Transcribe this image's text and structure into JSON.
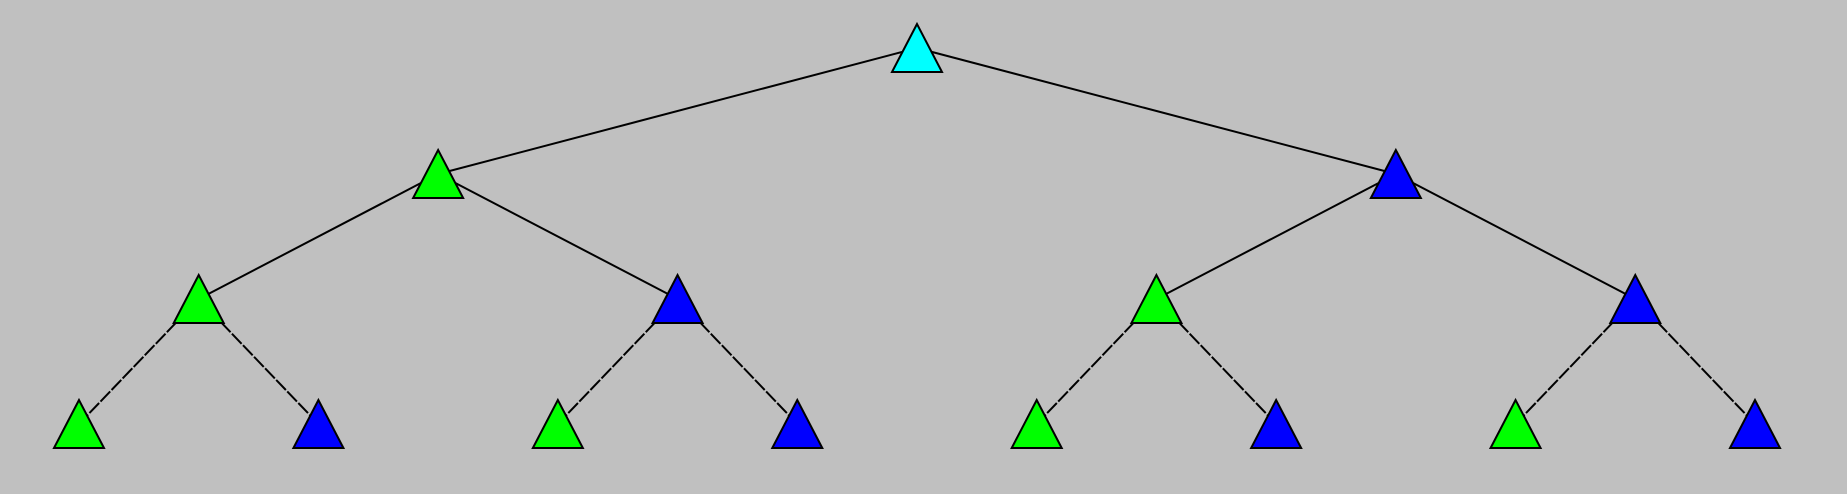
{
  "diagram": {
    "background": "#c0c0c0",
    "colors": {
      "root": "#00ffff",
      "green": "#00ff00",
      "blue": "#0000ff",
      "outline": "#000000",
      "edge": "#000000"
    },
    "nodes": [
      {
        "id": "n1",
        "color": "root"
      },
      {
        "id": "n2",
        "color": "green",
        "parent": "n1"
      },
      {
        "id": "n3",
        "color": "blue",
        "parent": "n1"
      },
      {
        "id": "n4",
        "color": "green",
        "parent": "n2"
      },
      {
        "id": "n5",
        "color": "blue",
        "parent": "n2"
      },
      {
        "id": "n6",
        "color": "green",
        "parent": "n3"
      },
      {
        "id": "n7",
        "color": "blue",
        "parent": "n3"
      },
      {
        "id": "n8",
        "color": "green",
        "parent": "n4"
      },
      {
        "id": "n9",
        "color": "blue",
        "parent": "n4"
      },
      {
        "id": "n10",
        "color": "green",
        "parent": "n5"
      },
      {
        "id": "n11",
        "color": "blue",
        "parent": "n5"
      },
      {
        "id": "n12",
        "color": "green",
        "parent": "n6"
      },
      {
        "id": "n13",
        "color": "blue",
        "parent": "n6"
      },
      {
        "id": "n14",
        "color": "green",
        "parent": "n7"
      },
      {
        "id": "n15",
        "color": "blue",
        "parent": "n7"
      }
    ]
  }
}
